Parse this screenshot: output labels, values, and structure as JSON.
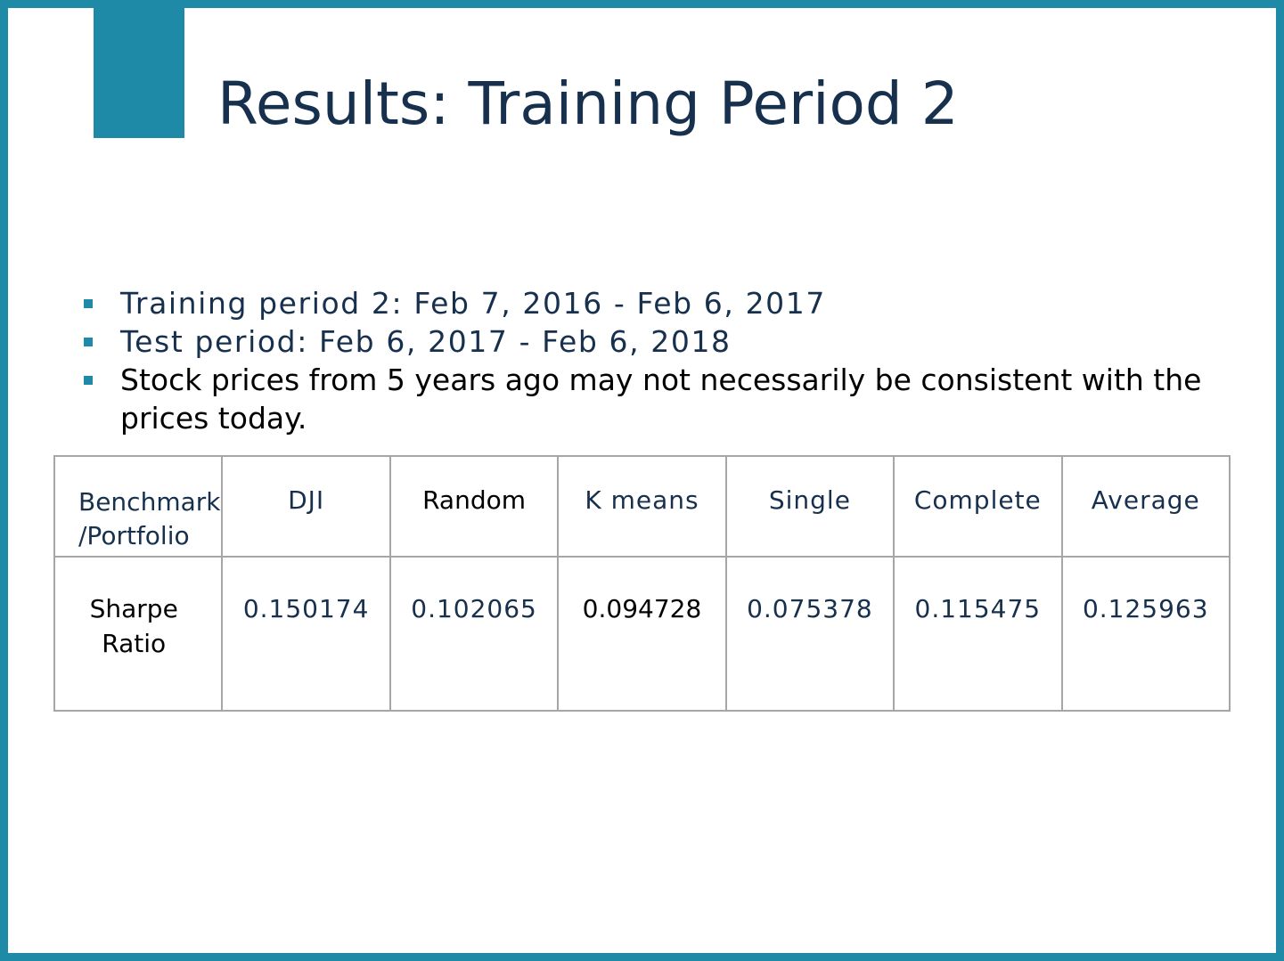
{
  "slide": {
    "title": "Results: Training Period 2",
    "accent_color": "#1e8aa8",
    "title_color": "#17304d"
  },
  "bullets": [
    {
      "text": "Training period 2: Feb 7, 2016 - Feb 6, 2017"
    },
    {
      "text": "Test period: Feb 6, 2017 - Feb 6, 2018"
    },
    {
      "text": "Stock prices from 5 years ago may not necessarily be consistent with the prices today."
    }
  ],
  "table": {
    "corner_header": "Benchmark /Portfolio",
    "columns": [
      "DJI",
      "Random",
      "K means",
      "Single",
      "Complete",
      "Average"
    ],
    "rows": [
      {
        "label": "Sharpe Ratio",
        "values": [
          "0.150174",
          "0.102065",
          "0.094728",
          "0.075378",
          "0.115475",
          "0.125963"
        ]
      }
    ]
  }
}
